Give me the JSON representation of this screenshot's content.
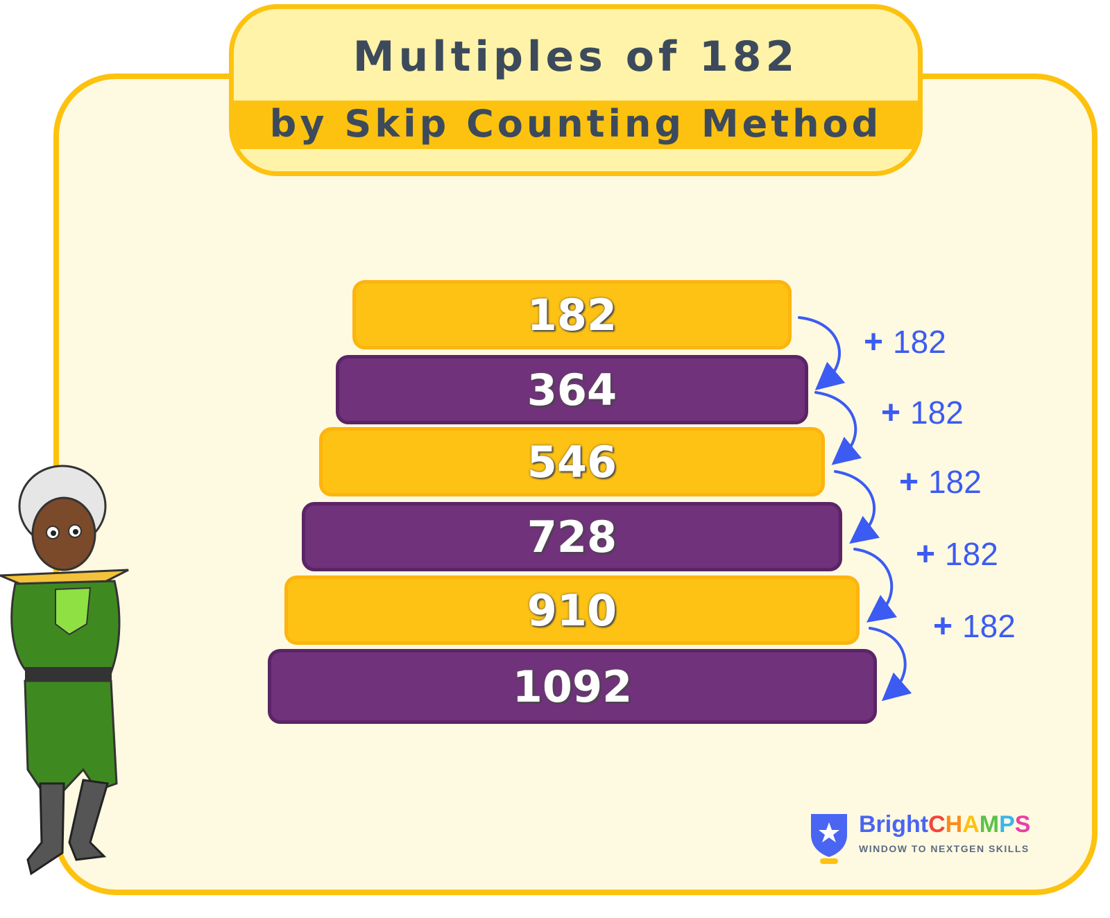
{
  "title": {
    "main": "Multiples of  182",
    "sub": "by Skip Counting Method"
  },
  "bars": [
    {
      "value": "182",
      "color": "#fdc213"
    },
    {
      "value": "364",
      "color": "#70327b"
    },
    {
      "value": "546",
      "color": "#fdc213"
    },
    {
      "value": "728",
      "color": "#70327b"
    },
    {
      "value": "910",
      "color": "#fdc213"
    },
    {
      "value": "1092",
      "color": "#70327b"
    }
  ],
  "steps": [
    {
      "sign": "+",
      "amount": "182"
    },
    {
      "sign": "+",
      "amount": "182"
    },
    {
      "sign": "+",
      "amount": "182"
    },
    {
      "sign": "+",
      "amount": "182"
    },
    {
      "sign": "+",
      "amount": "182"
    }
  ],
  "logo": {
    "brand_a": "Bright",
    "brand_b": [
      "C",
      "H",
      "A",
      "M",
      "P",
      "S"
    ],
    "brand_colors": [
      "#f4433b",
      "#fb8c1b",
      "#fdc20f",
      "#5cc04b",
      "#3bb5e8",
      "#e93fa8"
    ],
    "tagline": "WINDOW TO NEXTGEN SKILLS"
  },
  "colors": {
    "accent": "#fdc20f",
    "arrow": "#3b5bf2",
    "purple": "#70327b"
  }
}
